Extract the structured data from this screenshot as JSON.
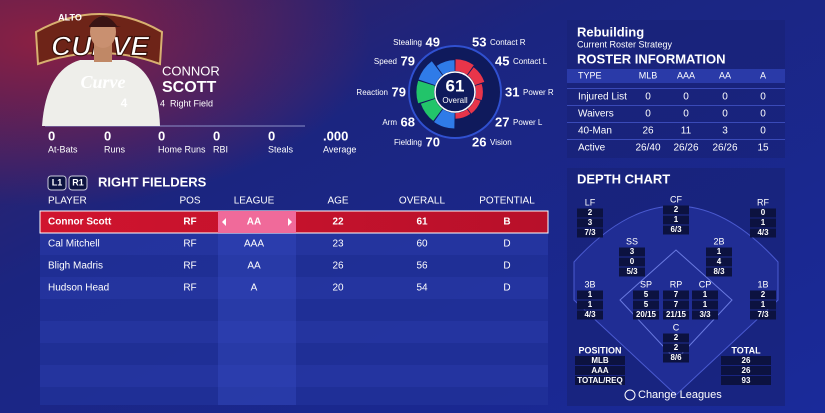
{
  "logo": {
    "top": "ALTO",
    "main": "CURVE"
  },
  "player": {
    "first_name": "CONNOR",
    "last_name": "SCOTT",
    "number": "4",
    "position": "Right Field",
    "jersey_text": "Curve",
    "jersey_number": "4"
  },
  "stats": [
    {
      "value": 0,
      "label": "At-Bats"
    },
    {
      "value": 0,
      "label": "Runs"
    },
    {
      "value": 0,
      "label": "Home Runs"
    },
    {
      "value": 0,
      "label": "RBI"
    },
    {
      "value": 0,
      "label": "Steals"
    },
    {
      "value": ".000",
      "label": "Average"
    }
  ],
  "ratings": {
    "overall": 61,
    "overall_label": "Overall",
    "attributes": [
      {
        "name": "Contact R",
        "value": 53,
        "color": "#e8354a"
      },
      {
        "name": "Contact L",
        "value": 45,
        "color": "#e8354a"
      },
      {
        "name": "Power R",
        "value": 31,
        "color": "#e8354a"
      },
      {
        "name": "Power L",
        "value": 27,
        "color": "#e8354a"
      },
      {
        "name": "Vision",
        "value": 26,
        "color": "#e8354a"
      },
      {
        "name": "Fielding",
        "value": 70,
        "color": "#2f7be8"
      },
      {
        "name": "Arm",
        "value": 68,
        "color": "#22c46a"
      },
      {
        "name": "Reaction",
        "value": 79,
        "color": "#22c46a"
      },
      {
        "name": "Speed",
        "value": 79,
        "color": "#2f7be8"
      },
      {
        "name": "Stealing",
        "value": 49,
        "color": "#2f7be8"
      }
    ]
  },
  "strategy": {
    "title": "Rebuilding",
    "subtitle": "Current Roster Strategy"
  },
  "roster_info": {
    "title": "ROSTER INFORMATION",
    "columns": [
      "TYPE",
      "MLB",
      "AAA",
      "AA",
      "A"
    ],
    "rows": [
      [
        "Injured List",
        0,
        0,
        0,
        0
      ],
      [
        "Waivers",
        0,
        0,
        0,
        0
      ],
      [
        "40-Man",
        26,
        11,
        3,
        0
      ],
      [
        "Active",
        "26/40",
        "26/26",
        "26/26",
        15
      ]
    ]
  },
  "players_table": {
    "buttons": [
      "L1",
      "R1"
    ],
    "title": "RIGHT FIELDERS",
    "columns": [
      "PLAYER",
      "POS",
      "LEAGUE",
      "AGE",
      "OVERALL",
      "POTENTIAL"
    ],
    "rows": [
      [
        "Connor Scott",
        "RF",
        "AA",
        22,
        61,
        "B"
      ],
      [
        "Cal Mitchell",
        "RF",
        "AAA",
        23,
        60,
        "D"
      ],
      [
        "Bligh Madris",
        "RF",
        "AA",
        26,
        56,
        "D"
      ],
      [
        "Hudson Head",
        "RF",
        "A",
        20,
        54,
        "D"
      ]
    ]
  },
  "depth_chart": {
    "title": "DEPTH CHART",
    "positions": [
      {
        "name": "LF",
        "values": [
          2,
          3,
          "7/3"
        ]
      },
      {
        "name": "CF",
        "values": [
          2,
          1,
          "6/3"
        ]
      },
      {
        "name": "RF",
        "values": [
          0,
          1,
          "4/3"
        ]
      },
      {
        "name": "SS",
        "values": [
          3,
          0,
          "5/3"
        ]
      },
      {
        "name": "2B",
        "values": [
          1,
          4,
          "8/3"
        ]
      },
      {
        "name": "3B",
        "values": [
          1,
          1,
          "4/3"
        ]
      },
      {
        "name": "SP",
        "values": [
          5,
          5,
          "20/15"
        ]
      },
      {
        "name": "RP",
        "values": [
          7,
          7,
          "21/15"
        ]
      },
      {
        "name": "CP",
        "values": [
          1,
          1,
          "3/3"
        ]
      },
      {
        "name": "1B",
        "values": [
          2,
          1,
          "7/3"
        ]
      },
      {
        "name": "C",
        "values": [
          2,
          2,
          "8/6"
        ]
      }
    ],
    "legend": {
      "position_header": "POSITION",
      "rows": [
        "MLB",
        "AAA",
        "TOTAL/REQ"
      ],
      "total_header": "TOTAL",
      "totals": [
        26,
        26,
        93
      ]
    }
  },
  "action": {
    "label": "Change Leagues"
  }
}
